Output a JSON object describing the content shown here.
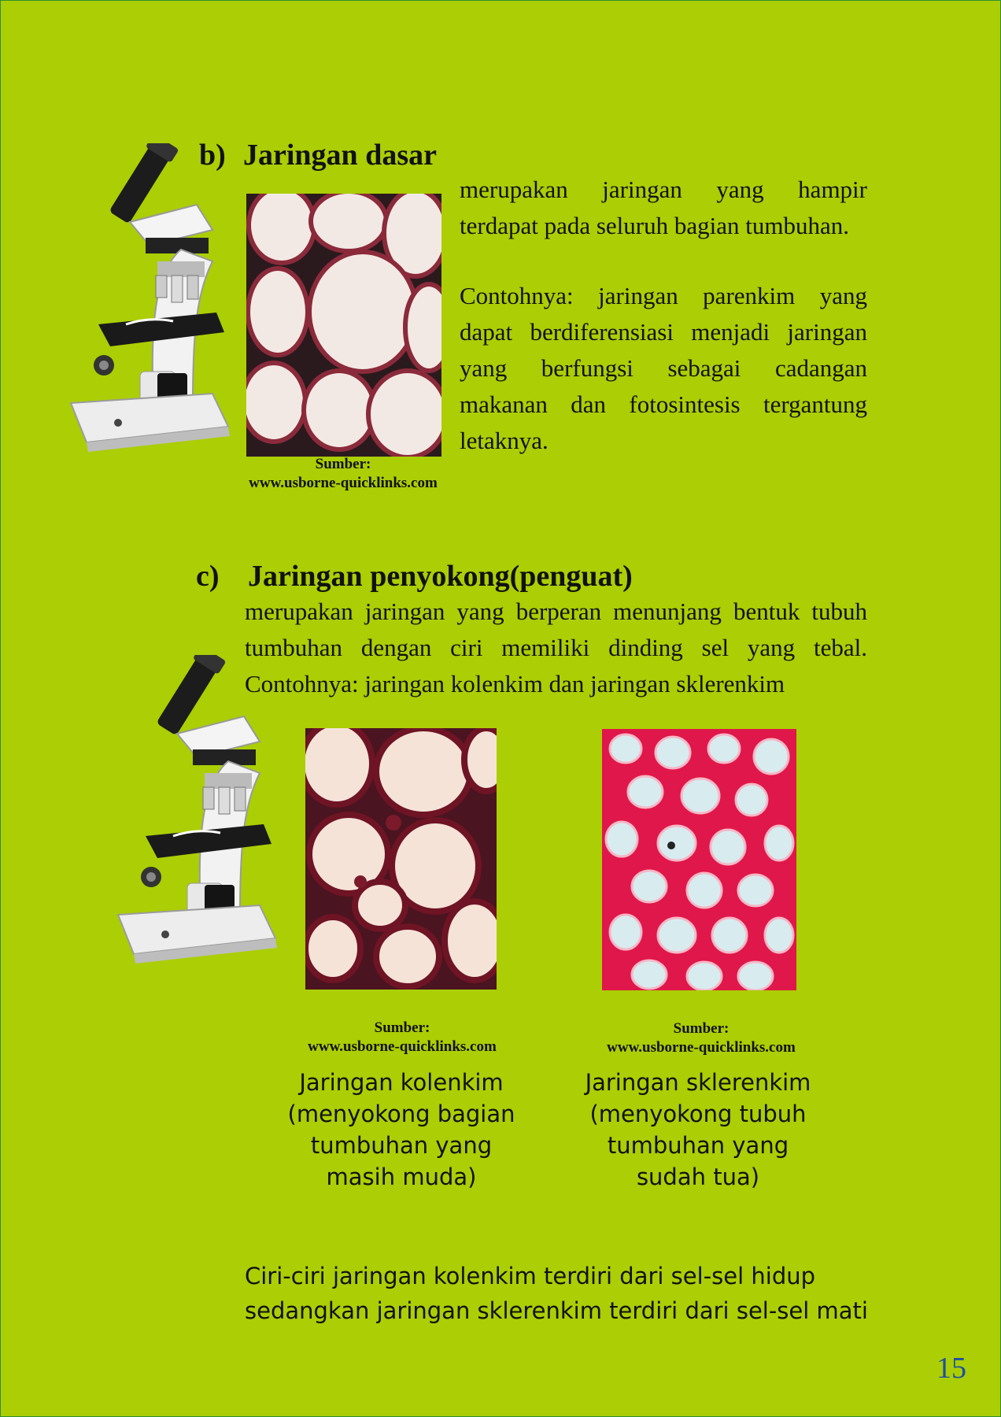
{
  "section_b": {
    "marker": "b)",
    "title": "Jaringan dasar",
    "description_part1": "merupakan jaringan yang hampir terdapat pada seluruh bagian tumbuhan.",
    "description_part2": "Contohnya: jaringan parenkim yang dapat berdiferensiasi menjadi jaringan yang berfungsi sebagai cadangan makanan dan fotosintesis tergantung letaknya.",
    "source_label": "Sumber:",
    "source_url": "www.usborne-quicklinks.com"
  },
  "section_c": {
    "marker": "c)",
    "title": "Jaringan penyokong(penguat)",
    "description": "merupakan jaringan yang berperan menunjang bentuk tubuh tumbuhan dengan ciri memiliki dinding sel yang tebal. Contohnya: jaringan kolenkim dan jaringan sklerenkim",
    "kolenkim": {
      "source_label": "Sumber:",
      "source_url": "www.usborne-quicklinks.com",
      "caption_lines": [
        "Jaringan kolenkim",
        "(menyokong bagian",
        "tumbuhan yang",
        "masih muda)"
      ]
    },
    "sklerenkim": {
      "source_label": "Sumber:",
      "source_url": "www.usborne-quicklinks.com",
      "caption_lines": [
        "Jaringan sklerenkim",
        "(menyokong tubuh",
        "tumbuhan yang",
        "sudah tua)"
      ]
    }
  },
  "note": {
    "line1": "Ciri-ciri jaringan kolenkim terdiri dari sel-sel hidup",
    "line2": "sedangkan jaringan sklerenkim terdiri dari sel-sel mati"
  },
  "page_number": "15",
  "colors": {
    "background": "#abce04",
    "page_number": "#1f4fa0",
    "parenchyma_wall": "#8a2a3a",
    "collenchyma_wall": "#6e1424",
    "sclerenchyma_wall": "#e0174a"
  },
  "icons": [
    "microscope-icon"
  ]
}
